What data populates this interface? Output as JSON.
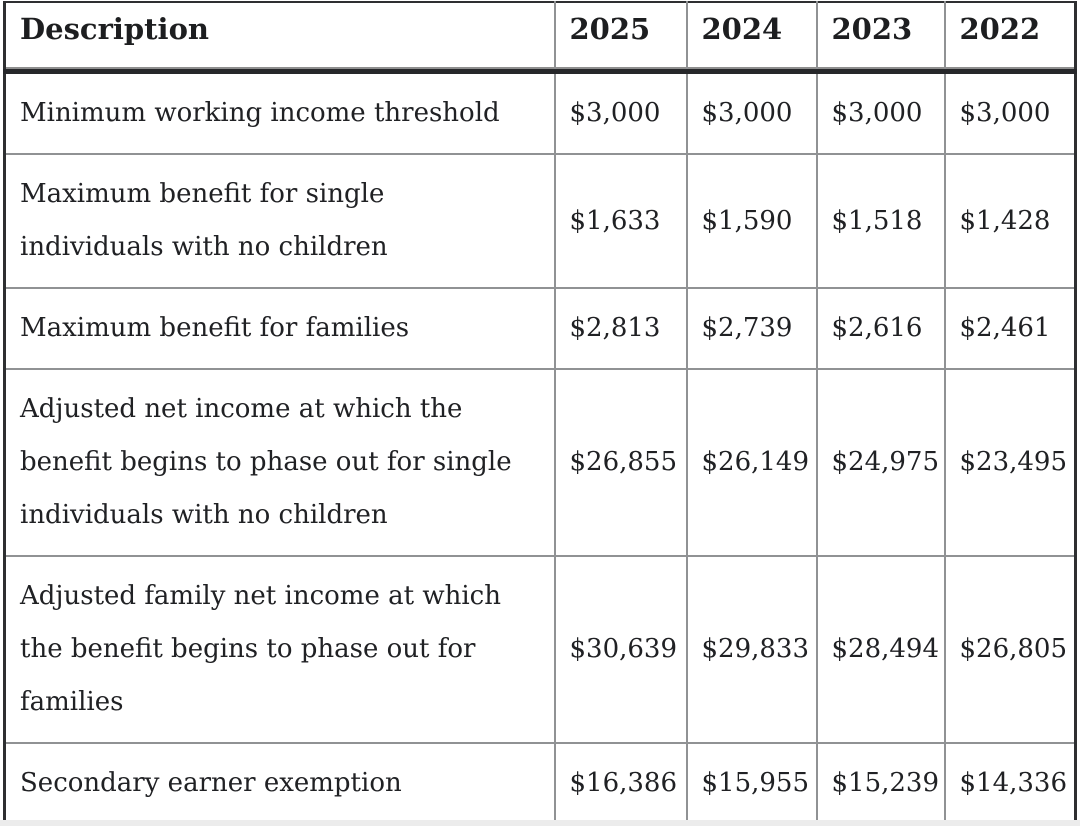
{
  "table": {
    "columns": [
      "Description",
      "2025",
      "2024",
      "2023",
      "2022"
    ],
    "rows": [
      {
        "desc": "Minimum working income threshold",
        "values": [
          "$3,000",
          "$3,000",
          "$3,000",
          "$3,000"
        ]
      },
      {
        "desc": "Maximum benefit for single\nindividuals with no children",
        "values": [
          "$1,633",
          "$1,590",
          "$1,518",
          "$1,428"
        ]
      },
      {
        "desc": "Maximum benefit for families",
        "values": [
          "$2,813",
          "$2,739",
          "$2,616",
          "$2,461"
        ]
      },
      {
        "desc": "Adjusted net income at which the\nbenefit begins to phase out for single\nindividuals with no children",
        "values": [
          "$26,855",
          "$26,149",
          "$24,975",
          "$23,495"
        ]
      },
      {
        "desc": "Adjusted family net income at which\nthe benefit begins to phase out for\nfamilies",
        "values": [
          "$30,639",
          "$29,833",
          "$28,494",
          "$26,805"
        ]
      },
      {
        "desc": "Secondary earner exemption",
        "values": [
          "$16,386",
          "$15,955",
          "$15,239",
          "$14,336"
        ]
      }
    ]
  },
  "chart_data": {
    "type": "table",
    "columns": [
      "Description",
      "2025",
      "2024",
      "2023",
      "2022"
    ],
    "rows": [
      [
        "Minimum working income threshold",
        3000,
        3000,
        3000,
        3000
      ],
      [
        "Maximum benefit for single individuals with no children",
        1633,
        1590,
        1518,
        1428
      ],
      [
        "Maximum benefit for families",
        2813,
        2739,
        2616,
        2461
      ],
      [
        "Adjusted net income at which the benefit begins to phase out for single individuals with no children",
        26855,
        26149,
        24975,
        23495
      ],
      [
        "Adjusted family net income at which the benefit begins to phase out for families",
        30639,
        29833,
        28494,
        26805
      ],
      [
        "Secondary earner exemption",
        16386,
        15955,
        15239,
        14336
      ]
    ],
    "value_format": "currency $#,##0",
    "layout_hints": {
      "header_row_bold": true,
      "thick_rule_under_header": true,
      "all_cells_left_aligned": true
    }
  },
  "colors": {
    "background": "#ffffff",
    "text": "#202124",
    "outer_border": "#2e2f31",
    "inner_border": "#909294",
    "header_rule": "#26272a",
    "bottom_strip": "#ececec"
  }
}
